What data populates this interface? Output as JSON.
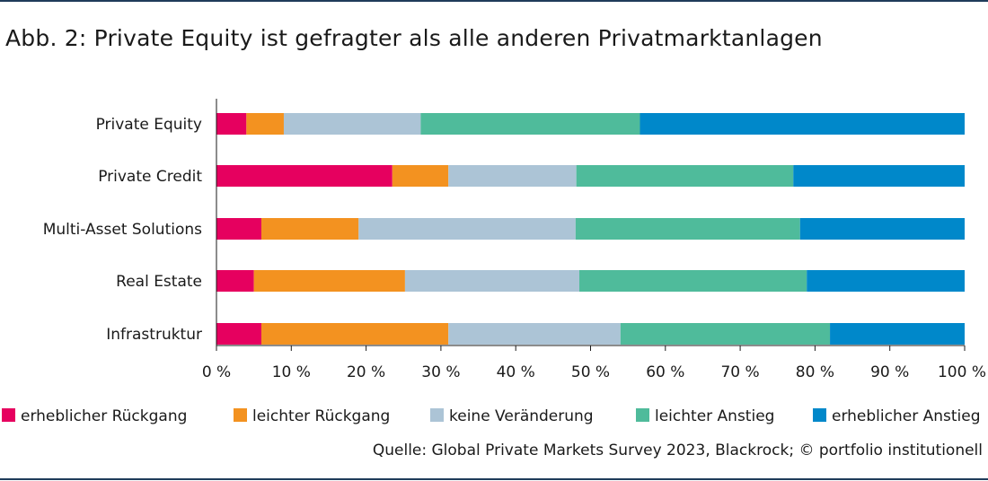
{
  "chart_data": {
    "type": "bar",
    "orientation": "horizontal",
    "stacked": true,
    "title": "Abb. 2: Private Equity ist gefragter als alle anderen Privatmarktanlagen",
    "categories": [
      "Private Equity",
      "Private Credit",
      "Multi-Asset Solutions",
      "Real Estate",
      "Infrastruktur"
    ],
    "series": [
      {
        "name": "erheblicher Rückgang",
        "color": "#e6005f",
        "values": [
          4,
          23.5,
          6,
          5,
          6
        ]
      },
      {
        "name": "leichter Rückgang",
        "color": "#f39220",
        "values": [
          5,
          7.5,
          13,
          20.2,
          25
        ]
      },
      {
        "name": "keine Veränderung",
        "color": "#acc4d6",
        "values": [
          18.3,
          17.1,
          29,
          23.3,
          23
        ]
      },
      {
        "name": "leichter Anstieg",
        "color": "#4fbb9b",
        "values": [
          29.3,
          29,
          30,
          30.4,
          28
        ]
      },
      {
        "name": "erheblicher Anstieg",
        "color": "#0088ca",
        "values": [
          43.4,
          22.9,
          22,
          21.1,
          18
        ]
      }
    ],
    "xlim": [
      0,
      100
    ],
    "xticks": [
      "0 %",
      "10 %",
      "20 %",
      "30 %",
      "40 %",
      "50 %",
      "60 %",
      "70 %",
      "80 %",
      "90 %",
      "100 %"
    ],
    "legend_position": "bottom",
    "grid": false
  },
  "source": "Quelle: Global Private Markets Survey 2023, Blackrock; © portfolio institutionell"
}
